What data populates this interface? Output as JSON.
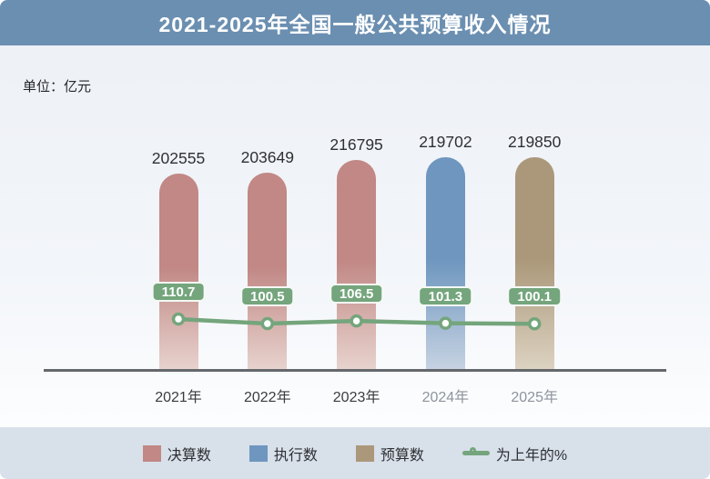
{
  "header": {
    "title": "2021-2025年全国一般公共预算收入情况"
  },
  "unit_label": "单位：亿元",
  "chart_data": {
    "type": "bar",
    "title": "2021-2025年全国一般公共预算收入情况",
    "unit": "亿元",
    "categories": [
      "2021年",
      "2022年",
      "2023年",
      "2024年",
      "2025年"
    ],
    "bars": [
      {
        "category": "2021年",
        "value": 202555,
        "series": "决算数"
      },
      {
        "category": "2022年",
        "value": 203649,
        "series": "决算数"
      },
      {
        "category": "2023年",
        "value": 216795,
        "series": "决算数"
      },
      {
        "category": "2024年",
        "value": 219702,
        "series": "执行数"
      },
      {
        "category": "2025年",
        "value": 219850,
        "series": "预算数"
      }
    ],
    "line_series": {
      "name": "为上年的%",
      "values": [
        110.7,
        100.5,
        106.5,
        101.3,
        100.1
      ]
    },
    "series_colors": {
      "决算数": {
        "fill": "#c18885",
        "fade": "#e7d2cd"
      },
      "执行数": {
        "fill": "#6e96bf",
        "fade": "#c6d2e2"
      },
      "预算数": {
        "fill": "#ab987a",
        "fade": "#dcd2c1"
      }
    },
    "line_color": "#74a57c",
    "muted_categories": [
      "2024年",
      "2025年"
    ],
    "ylim": [
      0,
      230000
    ],
    "grid": false,
    "legend_position": "bottom"
  },
  "legend": {
    "items": [
      {
        "label": "决算数",
        "type": "swatch",
        "color": "#c18885"
      },
      {
        "label": "执行数",
        "type": "swatch",
        "color": "#6e96bf"
      },
      {
        "label": "预算数",
        "type": "swatch",
        "color": "#ab987a"
      },
      {
        "label": "为上年的%",
        "type": "line-marker",
        "color": "#74a57c"
      }
    ]
  },
  "colors": {
    "header_bg": "#6b8fb1",
    "axis": "#64686c",
    "badge_bg": "#74a57c",
    "legend_band_bg": "#d8e0ea",
    "xlabel_dark": "#3b3c40",
    "xlabel_muted": "#8e949d"
  }
}
